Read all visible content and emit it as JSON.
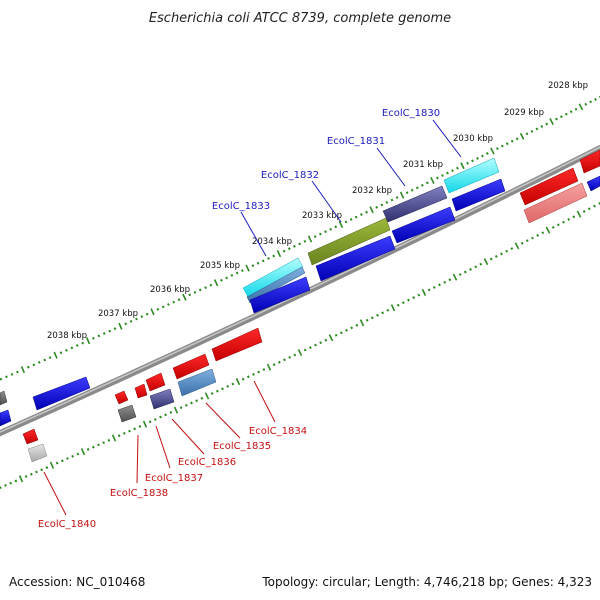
{
  "title": "Escherichia coli ATCC 8739, complete genome",
  "footer": {
    "accession": "Accession: NC_010468",
    "summary": "Topology: circular; Length: 4,746,218 bp; Genes: 4,323"
  },
  "colors": {
    "forward_label": "#1c1cc0",
    "reverse_label": "#c41010",
    "backbone": "#8a8a8a",
    "tick": "#2e8b22"
  },
  "kbp_labels": [
    "2028 kbp",
    "2029 kbp",
    "2030 kbp",
    "2031 kbp",
    "2032 kbp",
    "2033 kbp",
    "2034 kbp",
    "2035 kbp",
    "2036 kbp",
    "2037 kbp",
    "2038 kbp"
  ],
  "forward_gene_labels": [
    "EcolC_1830",
    "EcolC_1831",
    "EcolC_1832",
    "EcolC_1833"
  ],
  "reverse_gene_labels": [
    "EcolC_1834",
    "EcolC_1835",
    "EcolC_1836",
    "EcolC_1837",
    "EcolC_1838",
    "EcolC_1840"
  ]
}
